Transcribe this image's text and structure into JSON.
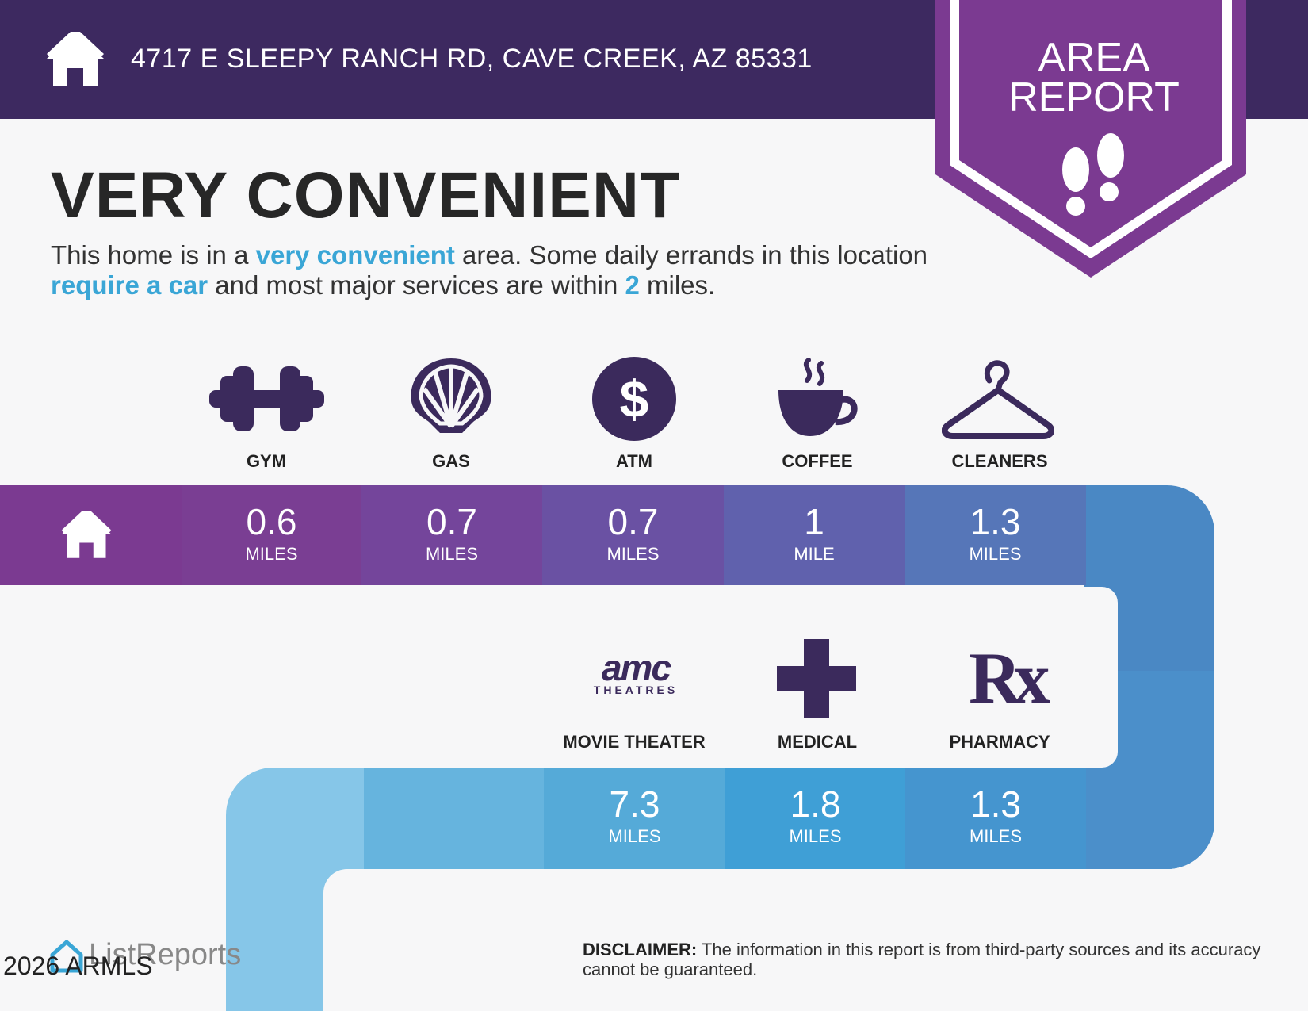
{
  "header": {
    "address": "4717 E SLEEPY RANCH RD, CAVE CREEK, AZ 85331",
    "badge_line1": "AREA",
    "badge_line2": "REPORT"
  },
  "headline": "VERY CONVENIENT",
  "description": {
    "p1": "This home is in a ",
    "h1": "very convenient",
    "p2": " area. Some daily errands in this location ",
    "h2": "require a car",
    "p3": " and most major services are within ",
    "h3": "2",
    "p4": " miles."
  },
  "row1": [
    {
      "label": "GYM",
      "icon": "dumbbell-icon",
      "distance": "0.6",
      "unit": "MILES"
    },
    {
      "label": "GAS",
      "icon": "shell-icon",
      "distance": "0.7",
      "unit": "MILES"
    },
    {
      "label": "ATM",
      "icon": "dollar-icon",
      "distance": "0.7",
      "unit": "MILES"
    },
    {
      "label": "COFFEE",
      "icon": "coffee-cup-icon",
      "distance": "1",
      "unit": "MILE"
    },
    {
      "label": "CLEANERS",
      "icon": "hanger-icon",
      "distance": "1.3",
      "unit": "MILES"
    }
  ],
  "row2": [
    {
      "label": "MOVIE THEATER",
      "icon": "amc-theatres-logo",
      "distance": "7.3",
      "unit": "MILES"
    },
    {
      "label": "MEDICAL",
      "icon": "medical-cross-icon",
      "distance": "1.8",
      "unit": "MILES"
    },
    {
      "label": "PHARMACY",
      "icon": "rx-icon",
      "distance": "1.3",
      "unit": "MILES"
    }
  ],
  "amc_logo": {
    "top": "amc",
    "bottom": "THEATRES"
  },
  "rx_glyph": "Rx",
  "footer": {
    "brand": "ListReports",
    "copyright": "2026 ARMLS",
    "disclaimer_label": "DISCLAIMER:",
    "disclaimer_text": " The information in this report is from third-party sources and its accuracy cannot be guaranteed."
  },
  "colors": {
    "header_bg": "#3d2960",
    "badge": "#7b3a91",
    "accent": "#3aa6d6"
  }
}
